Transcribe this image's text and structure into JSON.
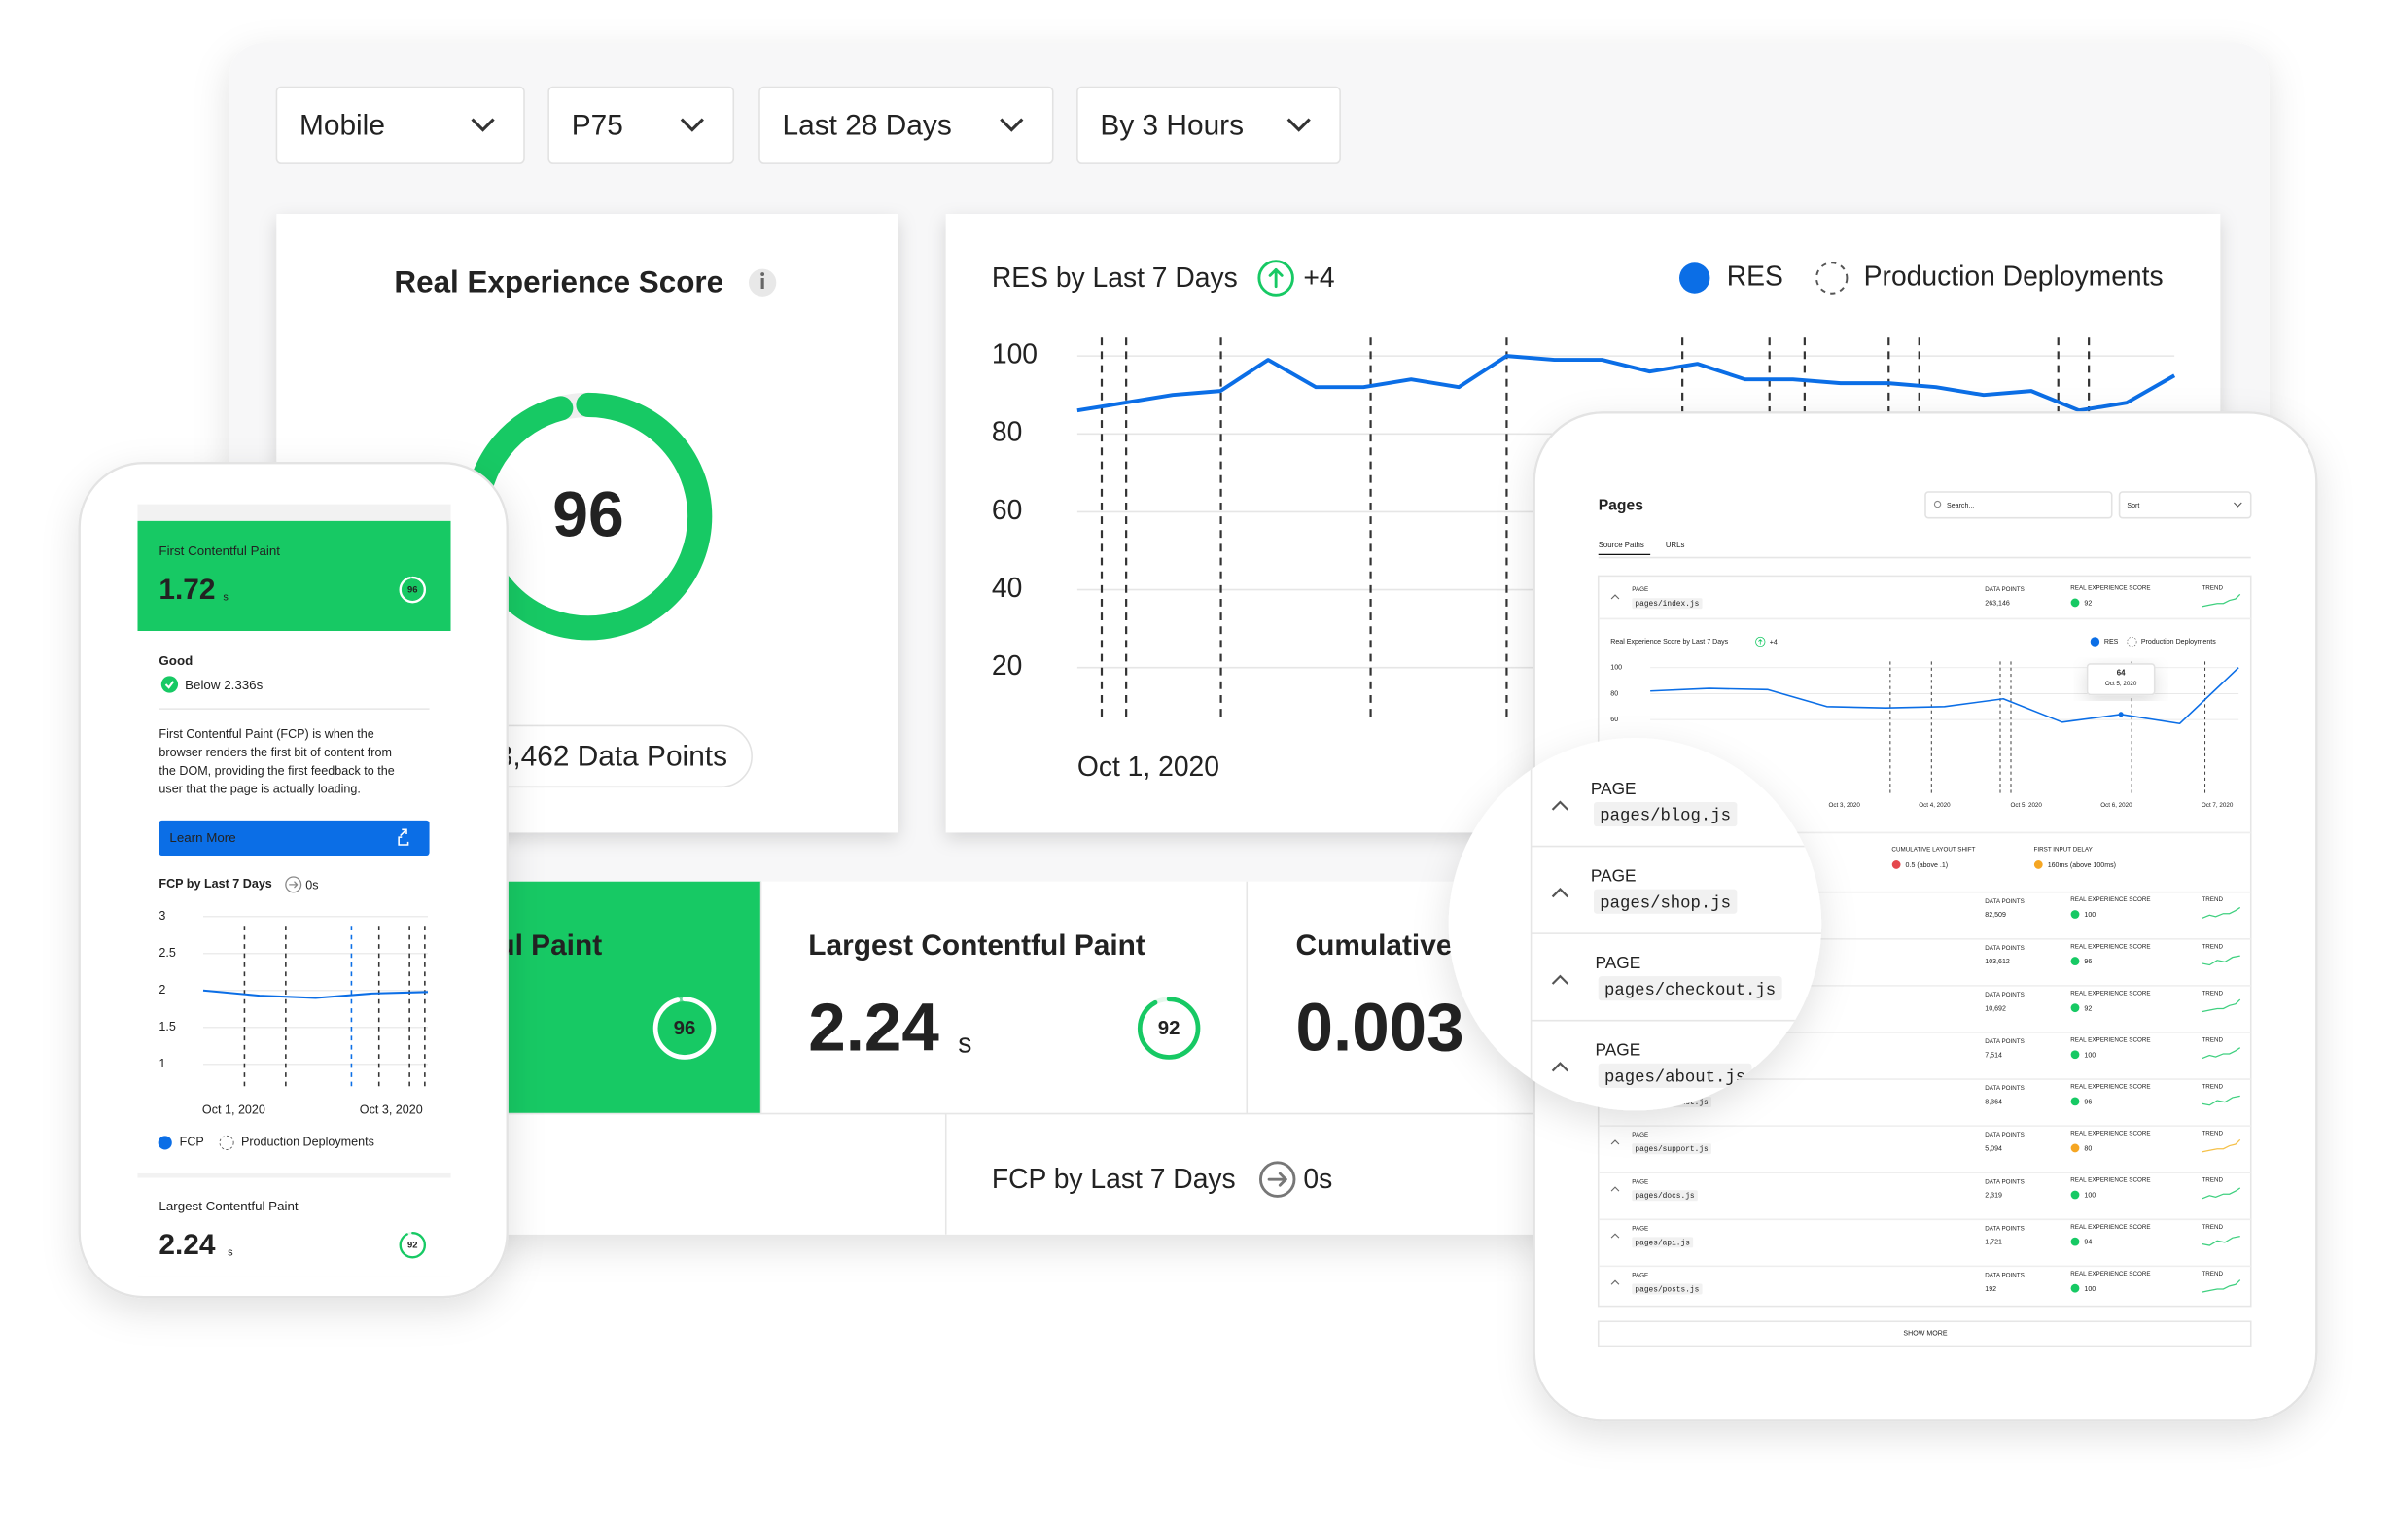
{
  "filters": [
    "Mobile",
    "P75",
    "Last 28 Days",
    "By 3 Hours"
  ],
  "score_card": {
    "title": "Real Experience Score",
    "score": 96,
    "data_points": "3,462 Data Points"
  },
  "res_chart": {
    "title": "RES by Last 7 Days",
    "change": "+4",
    "deploy_legend": "Production Deployments",
    "series": [
      {
        "name": "RES",
        "color": "#0b6ee6",
        "values": [
          86,
          88,
          90,
          91,
          99,
          92,
          92,
          94,
          92,
          100,
          99,
          99,
          96,
          98,
          94,
          94,
          93,
          93,
          92,
          90,
          91,
          86,
          88,
          95
        ]
      }
    ],
    "ylim": [
      10,
      100
    ],
    "yticks": [
      20,
      40,
      60,
      80,
      100
    ],
    "x_labels": [
      "Oct 1, 2020"
    ],
    "grid": true
  },
  "metrics": [
    {
      "name": "First Contentful Paint",
      "score": 96
    },
    {
      "name": "Largest Contentful Paint",
      "value": 2.24,
      "unit": "s",
      "score": 92
    },
    {
      "name": "Cumulative",
      "value": 0.003
    }
  ],
  "fcp_chart": {
    "title": "FCP by Last 7 Days",
    "change": "0s"
  },
  "phone": {
    "fcp": {
      "name": "First Contentful Paint",
      "value": 1.72,
      "unit": "s",
      "score": 96
    },
    "status": "Good",
    "threshold": "Below 2.336s",
    "description": [
      "First Contentful Paint (FCP) is when the",
      "browser renders the first bit of content from",
      "the DOM, providing the first feedback to the",
      "user that the page is actually loading."
    ],
    "button": "Learn More",
    "chart": {
      "title": "FCP by Last 7 Days",
      "change": "0s",
      "deploy_legend": "Production Deployments",
      "series": [
        {
          "name": "FCP",
          "color": "#0b6ee6",
          "values": [
            2,
            1.93,
            1.9,
            1.96,
            1.98
          ]
        }
      ],
      "ylim": [
        0.7,
        3
      ],
      "yticks": [
        3,
        2.5,
        2,
        1.5,
        1
      ],
      "x_labels": [
        "Oct 1, 2020",
        "Oct 3, 2020"
      ]
    },
    "lcp": {
      "name": "Largest Contentful Paint",
      "value": 2.24,
      "unit": "s",
      "score": 92
    }
  },
  "tablet": {
    "title": "Pages",
    "search": "Search...",
    "sort": "Sort",
    "tabs": [
      "Source Paths",
      "URLs"
    ],
    "columns": [
      "PAGE",
      "DATA POINTS",
      "REAL EXPERIENCE SCORE",
      "TREND"
    ],
    "rows": [
      {
        "page": "pages/index.js",
        "points": "263,146",
        "score": 92
      },
      {
        "page": "pages/blog.js",
        "points": "82,509",
        "score": 100
      },
      {
        "page": "pages/shop.js",
        "points": "103,612",
        "score": 96
      },
      {
        "page": "pages/checkout.js",
        "points": "10,692",
        "score": 92
      },
      {
        "page": "pages/about.js",
        "points": "7,514",
        "score": 100
      },
      {
        "page": "pages/contact.js",
        "points": "8,364",
        "score": 96
      },
      {
        "page": "pages/support.js",
        "points": "5,094",
        "score": 80
      },
      {
        "page": "pages/docs.js",
        "points": "2,319",
        "score": 100
      },
      {
        "page": "pages/api.js",
        "points": "1,721",
        "score": 94
      },
      {
        "page": "pages/posts.js",
        "points": "192",
        "score": 100
      }
    ],
    "chart": {
      "title": "Real Experience Score by Last 7 Days",
      "change": "+4",
      "deploy_legend": "Production Deployments",
      "series": [
        {
          "name": "RES",
          "color": "#0b6ee6",
          "values": [
            82,
            84,
            83,
            70,
            69,
            70,
            76,
            58,
            64,
            57,
            100
          ]
        }
      ],
      "ylim": [
        20,
        100
      ],
      "yticks": [
        100,
        80,
        60
      ],
      "x_labels": [
        "Oct 3, 2020",
        "Oct 4, 2020",
        "Oct 5, 2020",
        "Oct 6, 2020",
        "Oct 7, 2020"
      ],
      "tooltip": {
        "value": 64,
        "date": "Oct 5, 2020"
      }
    },
    "vitals": [
      {
        "name": "CUMULATIVE LAYOUT SHIFT",
        "value": "0.5 (above .1)",
        "color": "#e5484d"
      },
      {
        "name": "FIRST INPUT DELAY",
        "value": "160ms (above 100ms)",
        "color": "#f5a623"
      }
    ],
    "show_more": "SHOW MORE"
  }
}
